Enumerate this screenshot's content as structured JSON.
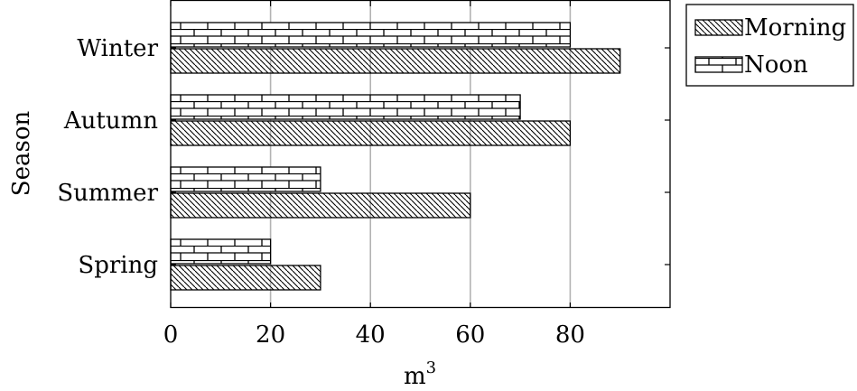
{
  "chart_data": {
    "type": "bar",
    "orientation": "horizontal",
    "categories": [
      "Spring",
      "Summer",
      "Autumn",
      "Winter"
    ],
    "series": [
      {
        "name": "Morning",
        "values": [
          30,
          60,
          80,
          90
        ],
        "pattern": "north-west-lines"
      },
      {
        "name": "Noon",
        "values": [
          20,
          30,
          70,
          80
        ],
        "pattern": "bricks"
      }
    ],
    "xlabel": "m",
    "xlabel_superscript": "3",
    "ylabel": "Season",
    "xlim": [
      0,
      100
    ],
    "xticks": [
      0,
      20,
      40,
      60,
      80
    ],
    "grid": "x-major",
    "legend_position": "outer-top-right",
    "colors": {
      "bar_fill": "#ffffff",
      "stroke": "#000000",
      "grid": "#b3b3b3"
    }
  }
}
